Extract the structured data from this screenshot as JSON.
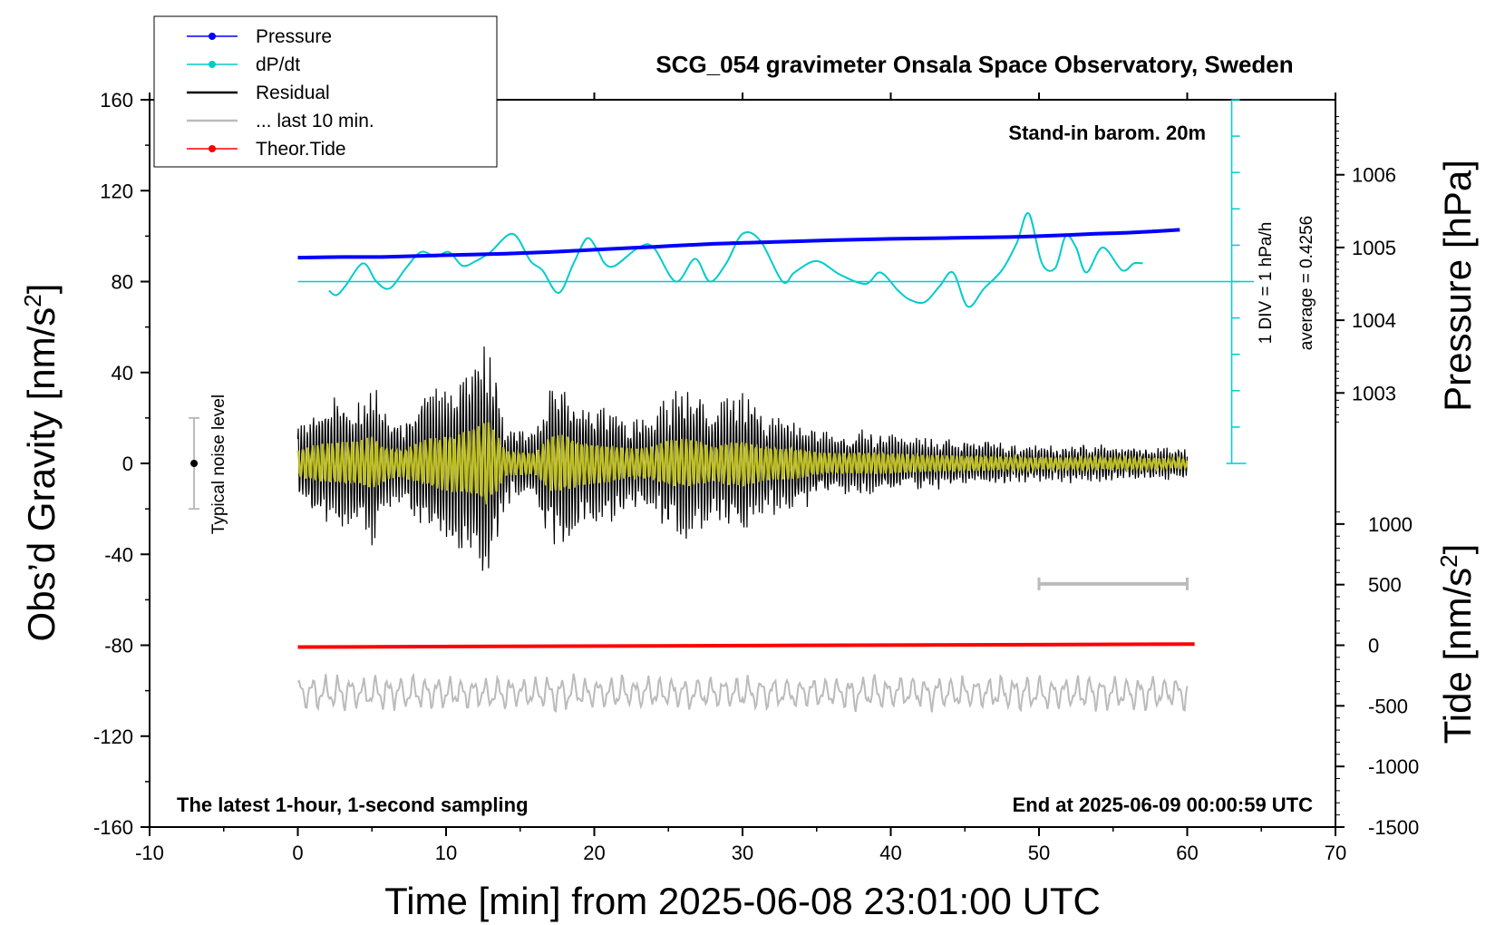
{
  "chart_data": {
    "type": "line",
    "title": "SCG_054 gravimeter Onsala Space Observatory, Sweden",
    "xlabel": "Time [min] from 2025-06-08 23:01:00 UTC",
    "ylabel_base": "Obs’d Gravity [nm/s",
    "ylabel_sup": "2",
    "ylabel_end": "]",
    "right_top_label": "Pressure [hPa]",
    "right_bottom_label_base": "Tide [nm/s",
    "right_bottom_label_sup": "2",
    "right_bottom_label_end": "]",
    "xlim": [
      -10,
      70
    ],
    "ylim": [
      -160,
      160
    ],
    "x_ticks": [
      "-10",
      "0",
      "10",
      "20",
      "30",
      "40",
      "50",
      "60",
      "70"
    ],
    "y_ticks": [
      "-160",
      "-120",
      "-80",
      "-40",
      "0",
      "40",
      "80",
      "120",
      "160"
    ],
    "pressure_axis": {
      "ticks": [
        "1003",
        "1004",
        "1005",
        "1006"
      ],
      "tick_values": [
        1003,
        1004,
        1005,
        1006
      ],
      "gravity_equiv_of_1005": 95,
      "nm_per_hPa": 32
    },
    "tide_axis": {
      "ticks": [
        "-1500",
        "-1000",
        "-500",
        "0",
        "500",
        "1000"
      ],
      "tick_values": [
        -1500,
        -1000,
        -500,
        0,
        500,
        1000
      ],
      "gravity_equiv_of_0": -80,
      "nm_per_tide_unit": 0.05333
    },
    "legend": [
      {
        "label": "Pressure",
        "color": "#0000ff",
        "marker": true
      },
      {
        "label": "dP/dt",
        "color": "#00cccc",
        "marker": true
      },
      {
        "label": "Residual",
        "color": "#000000",
        "marker": false
      },
      {
        "label": "... last 10 min.",
        "color": "#bbbbbb",
        "marker": false
      },
      {
        "label": "Theor.Tide",
        "color": "#ff0000",
        "marker": true
      }
    ],
    "annotations": {
      "stand_in": "Stand-in barom. 20m",
      "latest": "The latest 1-hour, 1-second sampling",
      "end_at": "End at 2025-06-09 00:00:59 UTC",
      "noise": "Typical noise level",
      "div": "1 DIV = 1 hPa/h",
      "average": "average = 0.4256"
    },
    "noise_bar": {
      "x": -7,
      "center": 0,
      "half_range": 20
    },
    "dpdt_scale": {
      "x": 63,
      "zero_level": 0,
      "top_level": 160,
      "baseline_level": 80,
      "div_step": 16
    },
    "window_bar": {
      "x_start": 50,
      "x_end": 60,
      "y": -53
    },
    "series": [
      {
        "name": "Pressure",
        "color": "#0000ff",
        "x": [
          0,
          3,
          6,
          10,
          14,
          17,
          20,
          24,
          28,
          32,
          36,
          40,
          44,
          48,
          50,
          52,
          54,
          56,
          58,
          59.5
        ],
        "y": [
          90.5,
          90.8,
          90.9,
          91.6,
          92.3,
          93.0,
          94.0,
          95.3,
          96.6,
          97.4,
          98.2,
          98.8,
          99.2,
          99.6,
          100.0,
          100.5,
          101.1,
          101.5,
          102.2,
          102.8
        ]
      },
      {
        "name": "dP/dt",
        "color": "#00cccc",
        "x": [
          2.1,
          2.6,
          3.2,
          4.4,
          5.3,
          6.2,
          7.3,
          8.3,
          9.3,
          10.2,
          11.1,
          12.0,
          13.0,
          14.5,
          15.7,
          16.5,
          17.6,
          18.6,
          19.5,
          20.2,
          20.7,
          21.4,
          23.0,
          24.0,
          25.5,
          26.8,
          27.8,
          28.9,
          30.0,
          31.2,
          32.7,
          33.5,
          35.0,
          36.6,
          38.3,
          39.3,
          40.5,
          41.3,
          42.3,
          43.3,
          44.2,
          45.2,
          46.3,
          47.5,
          48.5,
          49.3,
          50.2,
          51.1,
          51.8,
          52.5,
          53.2,
          54.3,
          55.6,
          56.4,
          57.0
        ],
        "y": [
          76,
          74,
          78,
          88,
          80,
          77,
          86,
          93,
          91,
          93,
          87,
          89,
          93,
          101,
          89,
          85,
          75,
          88,
          99,
          94,
          88,
          87,
          95,
          95,
          80,
          90,
          80,
          88,
          101,
          98,
          80,
          84,
          89,
          83,
          79,
          84,
          76,
          72,
          71,
          78,
          84,
          69,
          77,
          85,
          97,
          110,
          88,
          86,
          100,
          95,
          84,
          95,
          85,
          88,
          88
        ]
      },
      {
        "name": "Residual",
        "color": "#000000",
        "envelope": {
          "x": [
            0,
            1,
            2,
            3,
            4,
            5,
            6,
            7,
            8,
            9,
            10,
            11,
            12,
            12.8,
            13.5,
            14,
            15,
            16,
            17,
            18,
            19,
            20,
            21,
            22,
            23,
            24,
            25,
            26,
            27,
            28,
            29,
            30,
            31,
            32,
            33,
            34,
            35,
            36,
            38,
            40,
            42,
            44,
            46,
            48,
            50,
            52,
            55,
            58,
            60
          ],
          "amp": [
            18,
            25,
            28,
            30,
            30,
            38,
            22,
            18,
            28,
            35,
            38,
            42,
            48,
            60,
            38,
            18,
            16,
            15,
            38,
            40,
            30,
            28,
            26,
            22,
            20,
            24,
            32,
            34,
            32,
            24,
            30,
            32,
            26,
            22,
            22,
            20,
            16,
            14,
            15,
            14,
            12,
            11,
            10,
            9,
            8,
            8,
            8,
            7,
            6
          ]
        }
      },
      {
        "name": "... last 10 min.",
        "color": "#bbbbbb",
        "center": -101,
        "amp": 6
      },
      {
        "name": "Theor.Tide",
        "color": "#ff0000",
        "x": [
          0,
          60.5
        ],
        "y": [
          -80.8,
          -79.5
        ]
      }
    ],
    "smoothed_residual_color": "#cccc22",
    "grid": false,
    "legend_position": "top-left"
  }
}
